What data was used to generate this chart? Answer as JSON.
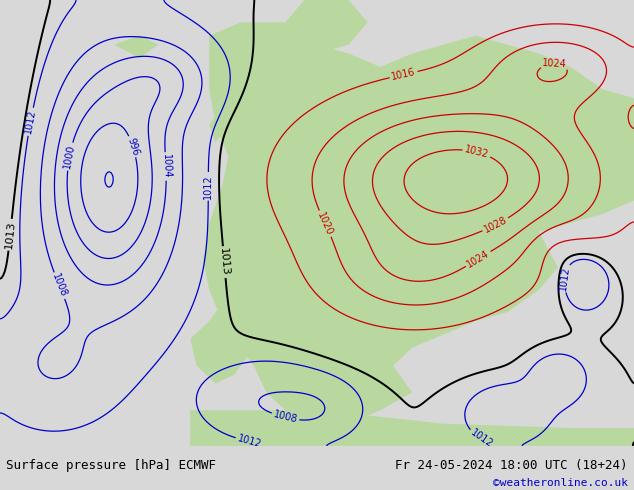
{
  "title_left": "Surface pressure [hPa] ECMWF",
  "title_right": "Fr 24-05-2024 18:00 UTC (18+24)",
  "copyright": "©weatheronline.co.uk",
  "fig_width": 6.34,
  "fig_height": 4.9,
  "dpi": 100,
  "bottom_bar_color": "#d8d8d8",
  "sea_color": "#c8c8c8",
  "land_color": "#b8d8a0",
  "contour_blue_color": "#0000cc",
  "contour_red_color": "#cc0000",
  "contour_black_color": "#000000",
  "font_size_labels": 7,
  "font_size_title": 9,
  "font_size_copyright": 8,
  "pressure_levels_step": 4,
  "pressure_min": 980,
  "pressure_max": 1040
}
